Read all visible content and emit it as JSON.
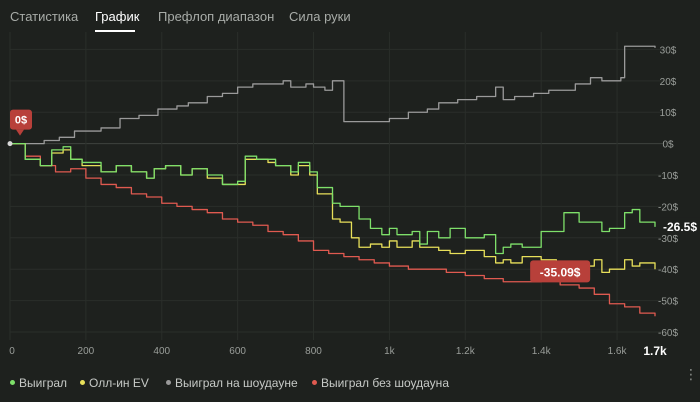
{
  "tabs": [
    {
      "label": "Статистика",
      "active": false
    },
    {
      "label": "График",
      "active": true
    },
    {
      "label": "Префлоп диапазон",
      "active": false
    },
    {
      "label": "Сила руки",
      "active": false
    }
  ],
  "legend": [
    {
      "label": "Выиграл",
      "color": "#7ee06a"
    },
    {
      "label": "Олл-ин EV",
      "color": "#e8e05a"
    },
    {
      "label": "Выиграл на шоудауне",
      "color": "#9a9a9a"
    },
    {
      "label": "Выиграл без шоудауна",
      "color": "#e05a50"
    }
  ],
  "menu_icon": "more-vertical-icon",
  "chart_data": {
    "type": "line",
    "xlabel": "",
    "ylabel": "",
    "xlim": [
      0,
      1700
    ],
    "ylim": [
      -60,
      33
    ],
    "x_ticks": [
      {
        "value": 0,
        "label": "0"
      },
      {
        "value": 200,
        "label": "200"
      },
      {
        "value": 400,
        "label": "400"
      },
      {
        "value": 600,
        "label": "600"
      },
      {
        "value": 800,
        "label": "800"
      },
      {
        "value": 1000,
        "label": "1k"
      },
      {
        "value": 1200,
        "label": "1.2k"
      },
      {
        "value": 1400,
        "label": "1.4k"
      },
      {
        "value": 1600,
        "label": "1.6k"
      }
    ],
    "x_end_label": "1.7k",
    "y_ticks": [
      {
        "value": 30,
        "label": "30$"
      },
      {
        "value": 20,
        "label": "20$"
      },
      {
        "value": 10,
        "label": "10$"
      },
      {
        "value": 0,
        "label": "0$"
      },
      {
        "value": -10,
        "label": "-10$"
      },
      {
        "value": -20,
        "label": "-20$"
      },
      {
        "value": -30,
        "label": "-30$"
      },
      {
        "value": -40,
        "label": "-40$"
      },
      {
        "value": -50,
        "label": "-50$"
      },
      {
        "value": -60,
        "label": "-60$"
      }
    ],
    "grid": true,
    "annotations": [
      {
        "text": "0$",
        "x": 0,
        "y": 0,
        "color": "#b8403a"
      },
      {
        "text": "-35.09$",
        "x": 1450,
        "y": -41,
        "color": "#b8403a"
      }
    ],
    "end_label": {
      "text": "-26.5$",
      "series": "Выиграл"
    },
    "series": [
      {
        "name": "Выиграл",
        "color": "#7ee06a",
        "x": [
          0,
          40,
          80,
          110,
          140,
          160,
          190,
          240,
          280,
          320,
          360,
          380,
          410,
          450,
          480,
          520,
          560,
          600,
          620,
          650,
          680,
          700,
          740,
          760,
          790,
          810,
          830,
          850,
          870,
          900,
          920,
          950,
          980,
          1000,
          1020,
          1060,
          1080,
          1100,
          1130,
          1160,
          1200,
          1250,
          1280,
          1300,
          1320,
          1350,
          1400,
          1440,
          1460,
          1500,
          1540,
          1560,
          1580,
          1600,
          1620,
          1640,
          1660,
          1700
        ],
        "y": [
          0,
          -5,
          -7,
          -2,
          -1,
          -5,
          -6,
          -9,
          -7,
          -9,
          -11,
          -8,
          -7,
          -10,
          -8,
          -10,
          -13,
          -12,
          -4,
          -5,
          -5,
          -7,
          -9,
          -6,
          -9,
          -14,
          -14,
          -19,
          -20,
          -20,
          -24,
          -27,
          -29,
          -27,
          -29,
          -28,
          -32,
          -28,
          -30,
          -27,
          -30,
          -29,
          -35,
          -33,
          -32,
          -33,
          -28,
          -28,
          -22,
          -25,
          -25,
          -28,
          -27,
          -27,
          -22,
          -21,
          -25,
          -26.5
        ]
      },
      {
        "name": "Олл-ин EV",
        "color": "#e8e05a",
        "x": [
          0,
          40,
          80,
          110,
          140,
          160,
          190,
          240,
          280,
          320,
          360,
          380,
          410,
          450,
          480,
          520,
          560,
          600,
          620,
          650,
          680,
          700,
          740,
          760,
          790,
          810,
          830,
          850,
          870,
          900,
          920,
          950,
          980,
          1000,
          1020,
          1060,
          1080,
          1100,
          1130,
          1160,
          1200,
          1250,
          1280,
          1300,
          1320,
          1350,
          1400,
          1440,
          1460,
          1500,
          1540,
          1560,
          1580,
          1600,
          1620,
          1640,
          1660,
          1700
        ],
        "y": [
          0,
          -5,
          -7,
          -3,
          -2,
          -5,
          -7,
          -9,
          -7,
          -9,
          -11,
          -8,
          -7,
          -10,
          -8,
          -11,
          -13,
          -13,
          -5,
          -5,
          -6,
          -7,
          -10,
          -7,
          -10,
          -16,
          -16,
          -24,
          -25,
          -30,
          -33,
          -32,
          -33,
          -31,
          -33,
          -31,
          -33,
          -33,
          -34,
          -35,
          -34,
          -36,
          -38,
          -37,
          -38,
          -36,
          -37,
          -40,
          -38,
          -39,
          -37,
          -41,
          -40,
          -40,
          -37,
          -39,
          -38,
          -40
        ]
      },
      {
        "name": "Выиграл на шоудауне",
        "color": "#9a9a9a",
        "x": [
          0,
          40,
          90,
          130,
          170,
          240,
          290,
          340,
          390,
          440,
          470,
          520,
          560,
          600,
          640,
          680,
          720,
          740,
          780,
          800,
          830,
          850,
          880,
          940,
          1000,
          1050,
          1100,
          1130,
          1180,
          1230,
          1280,
          1300,
          1330,
          1380,
          1420,
          1450,
          1490,
          1530,
          1560,
          1590,
          1610,
          1620,
          1660,
          1700
        ],
        "y": [
          0,
          0,
          1,
          2,
          4,
          5,
          8,
          9,
          11,
          12,
          13,
          15,
          16,
          18,
          19,
          19,
          20,
          18,
          19,
          18,
          17,
          20,
          7,
          7,
          8,
          10,
          11,
          13,
          14,
          15,
          18,
          14,
          15,
          16,
          17,
          17,
          19,
          21,
          20,
          20,
          21,
          31,
          31,
          30.5
        ]
      },
      {
        "name": "Выиграл без шоудауна",
        "color": "#e05a50",
        "x": [
          0,
          40,
          80,
          120,
          160,
          200,
          240,
          280,
          320,
          360,
          400,
          440,
          480,
          520,
          560,
          600,
          640,
          680,
          720,
          760,
          800,
          840,
          880,
          920,
          960,
          1000,
          1050,
          1100,
          1150,
          1200,
          1250,
          1300,
          1350,
          1400,
          1450,
          1500,
          1540,
          1580,
          1620,
          1660,
          1700
        ],
        "y": [
          0,
          -4,
          -7,
          -9,
          -8,
          -11,
          -13,
          -14,
          -16,
          -17,
          -19,
          -20,
          -21,
          -22,
          -24,
          -25,
          -26,
          -28,
          -29,
          -31,
          -34,
          -35,
          -36,
          -37,
          -38,
          -39,
          -40,
          -40,
          -41,
          -42,
          -43,
          -44,
          -44,
          -43,
          -45,
          -46,
          -48,
          -51,
          -52,
          -54,
          -55
        ]
      }
    ]
  }
}
